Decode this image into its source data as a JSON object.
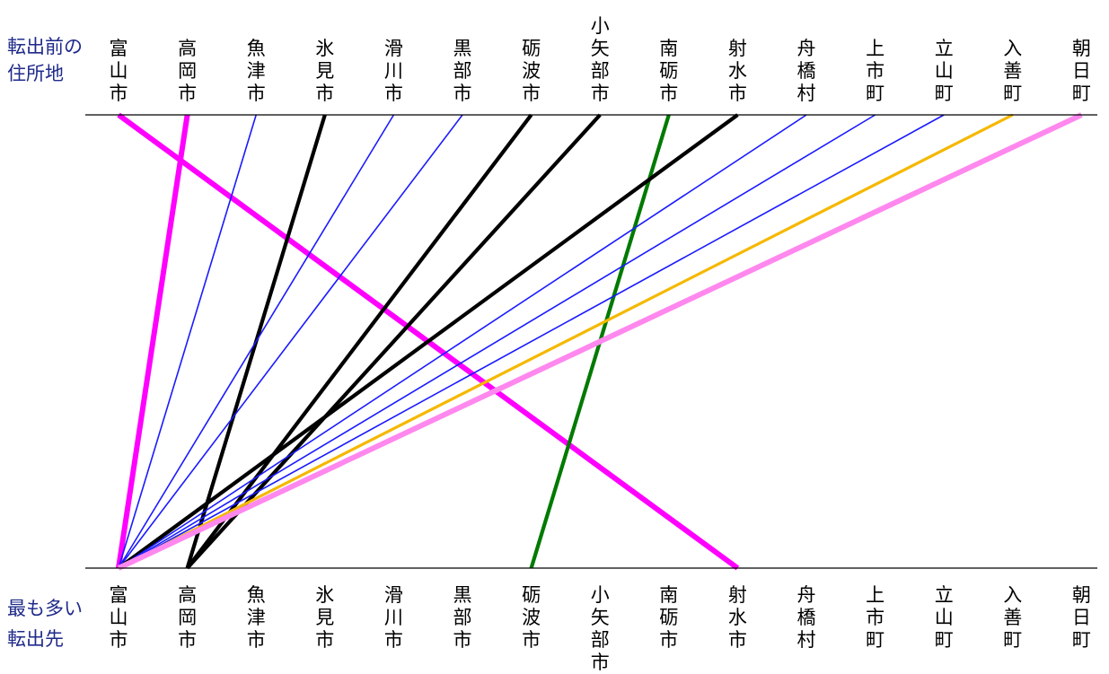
{
  "captions": {
    "origin": [
      "転出前の",
      "住所地"
    ],
    "destination": [
      "最も多い",
      "転出先"
    ]
  },
  "municipalities": [
    "富山市",
    "高岡市",
    "魚津市",
    "氷見市",
    "滑川市",
    "黒部市",
    "砺波市",
    "小矢部市",
    "南砺市",
    "射水市",
    "舟橋村",
    "上市町",
    "立山町",
    "入善町",
    "朝日町"
  ],
  "flows": [
    {
      "from": "富山市",
      "to": "射水市",
      "color": "#ff00ff",
      "weight": "heavy"
    },
    {
      "from": "高岡市",
      "to": "富山市",
      "color": "#ff00ff",
      "weight": "heavy"
    },
    {
      "from": "魚津市",
      "to": "富山市",
      "color": "#1a1aff",
      "weight": "thin"
    },
    {
      "from": "氷見市",
      "to": "高岡市",
      "color": "#000000",
      "weight": "medium"
    },
    {
      "from": "滑川市",
      "to": "富山市",
      "color": "#1a1aff",
      "weight": "thin"
    },
    {
      "from": "黒部市",
      "to": "富山市",
      "color": "#1a1aff",
      "weight": "thin"
    },
    {
      "from": "砺波市",
      "to": "高岡市",
      "color": "#000000",
      "weight": "medium"
    },
    {
      "from": "小矢部市",
      "to": "高岡市",
      "color": "#000000",
      "weight": "medium"
    },
    {
      "from": "南砺市",
      "to": "砺波市",
      "color": "#007a00",
      "weight": "medium"
    },
    {
      "from": "射水市",
      "to": "富山市",
      "color": "#000000",
      "weight": "medium"
    },
    {
      "from": "舟橋村",
      "to": "富山市",
      "color": "#1a1aff",
      "weight": "thin"
    },
    {
      "from": "上市町",
      "to": "富山市",
      "color": "#1a1aff",
      "weight": "thin"
    },
    {
      "from": "立山町",
      "to": "富山市",
      "color": "#1a1aff",
      "weight": "thin"
    },
    {
      "from": "入善町",
      "to": "富山市",
      "color": "#f5b800",
      "weight": "normal"
    },
    {
      "from": "朝日町",
      "to": "富山市",
      "color": "#ff88ee",
      "weight": "heavy"
    }
  ]
}
